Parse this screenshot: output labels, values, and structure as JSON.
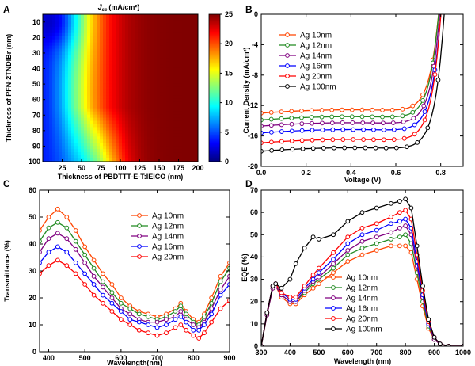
{
  "panels": [
    {
      "letter": "A"
    },
    {
      "letter": "B"
    },
    {
      "letter": "C"
    },
    {
      "letter": "D"
    }
  ],
  "chart_data": [
    {
      "type": "heatmap",
      "panel": "A",
      "title": "J_sc (mA/cm²)",
      "title_main": "J",
      "title_sub": "sc",
      "title_units": "(mA/cm²)",
      "xlabel": "Thickness of PBDTTT-E-T:IEICO (nm)",
      "ylabel": "Thickness of PFN-2TNDIBr (nm)",
      "xlim": [
        0,
        200
      ],
      "ylim": [
        5,
        100
      ],
      "y_reversed": true,
      "xticks": [
        25,
        50,
        75,
        100,
        125,
        150,
        175,
        200
      ],
      "yticks": [
        10,
        20,
        30,
        40,
        50,
        60,
        70,
        80,
        90,
        100
      ],
      "colorbar": {
        "min": 0,
        "max": 25,
        "ticks": [
          0,
          5,
          10,
          15,
          20,
          25
        ],
        "colormap": "jet"
      },
      "description_values": [
        {
          "x": 10,
          "y": 10,
          "z": 5
        },
        {
          "x": 50,
          "y": 50,
          "z": 15
        },
        {
          "x": 150,
          "y": 30,
          "z": 24
        },
        {
          "x": 150,
          "y": 90,
          "z": 24
        },
        {
          "x": 75,
          "y": 90,
          "z": 11
        }
      ]
    },
    {
      "type": "line",
      "panel": "B",
      "xlabel": "Voltage (V)",
      "ylabel": "Current Density (mA/cm²)",
      "xlim": [
        0.0,
        0.9
      ],
      "ylim": [
        -20,
        0
      ],
      "xticks": [
        0.0,
        0.2,
        0.4,
        0.6,
        0.8
      ],
      "yticks": [
        0,
        -4,
        -8,
        -12,
        -16,
        -20
      ],
      "legend_position": "top-left",
      "series": [
        {
          "name": "Ag 10nm",
          "color": "#ff4500",
          "marker": "circle",
          "jsc": -13.0,
          "voc": 0.79
        },
        {
          "name": "Ag 12nm",
          "color": "#228b22",
          "marker": "circle",
          "jsc": -13.9,
          "voc": 0.79
        },
        {
          "name": "Ag 14nm",
          "color": "#800080",
          "marker": "circle",
          "jsc": -14.7,
          "voc": 0.795
        },
        {
          "name": "Ag 16nm",
          "color": "#0000ff",
          "marker": "circle",
          "jsc": -15.6,
          "voc": 0.8
        },
        {
          "name": "Ag 20nm",
          "color": "#ff0000",
          "marker": "circle",
          "jsc": -16.9,
          "voc": 0.8
        },
        {
          "name": "Ag 100nm",
          "color": "#000000",
          "marker": "circle",
          "jsc": -18.0,
          "voc": 0.815
        }
      ]
    },
    {
      "type": "line",
      "panel": "C",
      "xlabel": "Wavelength(nm)",
      "ylabel": "Transmittance (%)",
      "xlim": [
        375,
        900
      ],
      "ylim": [
        0,
        60
      ],
      "xticks": [
        400,
        500,
        600,
        700,
        800,
        900
      ],
      "yticks": [
        0,
        10,
        20,
        30,
        40,
        50,
        60
      ],
      "legend_position": "top-right",
      "x": [
        375,
        400,
        425,
        450,
        475,
        500,
        525,
        550,
        575,
        600,
        625,
        650,
        675,
        700,
        725,
        750,
        765,
        780,
        800,
        815,
        830,
        850,
        875,
        900
      ],
      "series": [
        {
          "name": "Ag 10nm",
          "color": "#ff4500",
          "values": [
            45,
            50,
            53,
            50,
            45,
            39,
            34,
            29,
            25,
            20,
            17,
            15,
            14,
            13,
            14,
            16,
            18,
            15,
            12,
            11,
            14,
            20,
            28,
            33
          ]
        },
        {
          "name": "Ag 12nm",
          "color": "#228b22",
          "values": [
            41,
            46,
            48,
            46,
            41,
            36,
            31,
            26,
            22,
            18,
            16,
            14,
            13,
            12,
            13,
            15,
            17,
            14,
            11,
            10,
            13,
            18,
            26,
            31
          ]
        },
        {
          "name": "Ag 14nm",
          "color": "#800080",
          "values": [
            37,
            42,
            44,
            42,
            38,
            33,
            28,
            24,
            20,
            16,
            14,
            12,
            11,
            11,
            12,
            13,
            15,
            12,
            10,
            9,
            11,
            16,
            23,
            28
          ]
        },
        {
          "name": "Ag 16nm",
          "color": "#0000ff",
          "values": [
            33,
            37,
            39,
            37,
            33,
            29,
            25,
            21,
            18,
            15,
            12,
            11,
            10,
            9,
            10,
            12,
            13,
            11,
            8,
            8,
            10,
            14,
            21,
            25
          ]
        },
        {
          "name": "Ag 20nm",
          "color": "#ff0000",
          "values": [
            29,
            32,
            34,
            32,
            29,
            25,
            21,
            18,
            15,
            12,
            10,
            8,
            7,
            6,
            7,
            9,
            10,
            8,
            6,
            5,
            7,
            11,
            16,
            19
          ]
        }
      ]
    },
    {
      "type": "line",
      "panel": "D",
      "xlabel": "Wavelength (nm)",
      "ylabel": "EQE (%)",
      "xlim": [
        300,
        1000
      ],
      "ylim": [
        0,
        70
      ],
      "xticks": [
        300,
        400,
        500,
        600,
        700,
        800,
        900,
        1000
      ],
      "yticks": [
        0,
        10,
        20,
        30,
        40,
        50,
        60,
        70
      ],
      "legend_position": "lower-center",
      "x": [
        300,
        320,
        340,
        350,
        370,
        400,
        420,
        450,
        480,
        500,
        550,
        600,
        650,
        700,
        750,
        780,
        800,
        820,
        840,
        860,
        880,
        900,
        920,
        950,
        1000
      ],
      "series": [
        {
          "name": "Ag 10nm",
          "color": "#ff4500",
          "values": [
            0,
            14,
            26,
            27,
            22,
            19,
            19,
            23,
            26,
            28,
            33,
            38,
            41,
            43,
            45,
            45,
            45,
            42,
            30,
            18,
            8,
            3,
            1,
            0,
            0
          ]
        },
        {
          "name": "Ag 12nm",
          "color": "#228b22",
          "values": [
            0,
            14,
            26,
            27,
            23,
            20,
            20,
            24,
            28,
            30,
            35,
            41,
            44,
            46,
            48,
            49,
            50,
            46,
            33,
            20,
            9,
            3,
            1,
            0,
            0
          ]
        },
        {
          "name": "Ag 14nm",
          "color": "#800080",
          "values": [
            0,
            14,
            26,
            27,
            23,
            20,
            20,
            25,
            29,
            31,
            37,
            43,
            47,
            49,
            51,
            53,
            54,
            50,
            36,
            22,
            10,
            3,
            1,
            0,
            0
          ]
        },
        {
          "name": "Ag 16nm",
          "color": "#0000ff",
          "values": [
            0,
            15,
            27,
            28,
            24,
            21,
            21,
            26,
            30,
            33,
            39,
            46,
            50,
            52,
            55,
            56,
            57,
            53,
            38,
            23,
            10,
            4,
            1,
            0,
            0
          ]
        },
        {
          "name": "Ag 20nm",
          "color": "#ff0000",
          "values": [
            0,
            15,
            27,
            28,
            24,
            22,
            22,
            27,
            32,
            35,
            42,
            49,
            53,
            55,
            58,
            60,
            61,
            57,
            41,
            25,
            11,
            4,
            1,
            0,
            0
          ]
        },
        {
          "name": "Ag 100nm",
          "color": "#000000",
          "values": [
            0,
            15,
            27,
            28,
            26,
            30,
            37,
            44,
            49,
            48,
            50,
            56,
            60,
            62,
            64,
            65,
            66,
            62,
            45,
            27,
            12,
            4,
            1,
            0,
            0
          ]
        }
      ]
    }
  ]
}
